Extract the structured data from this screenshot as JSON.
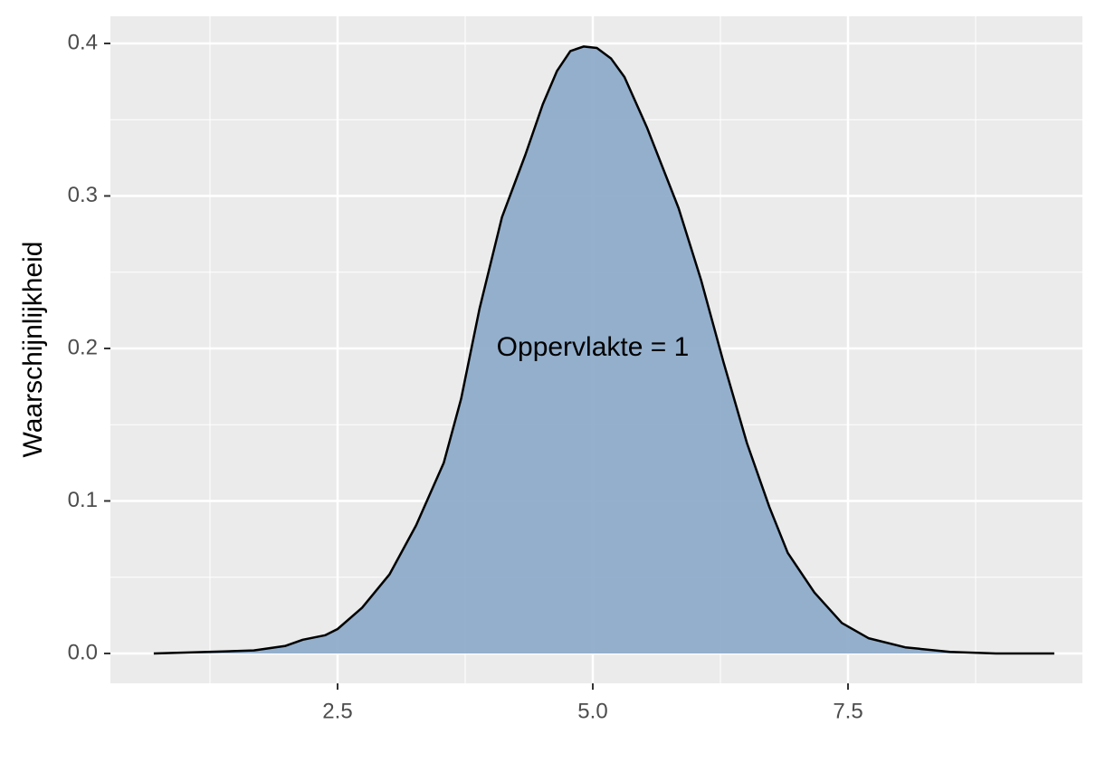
{
  "chart_data": {
    "type": "density",
    "y_label": "Waarschijnlijkheid",
    "annotation": {
      "text": "Oppervlakte = 1",
      "x": 5.0,
      "y": 0.2
    },
    "x": [
      0.7,
      1.23,
      1.68,
      1.99,
      2.16,
      2.38,
      2.5,
      2.74,
      3.01,
      3.27,
      3.54,
      3.71,
      3.89,
      4.11,
      4.34,
      4.51,
      4.65,
      4.78,
      4.91,
      5.04,
      5.18,
      5.31,
      5.53,
      5.84,
      6.06,
      6.28,
      6.51,
      6.73,
      6.91,
      7.17,
      7.44,
      7.7,
      8.06,
      8.5,
      8.95,
      9.52
    ],
    "values": [
      0,
      0.001,
      0.002,
      0.005,
      0.009,
      0.012,
      0.016,
      0.03,
      0.052,
      0.084,
      0.125,
      0.167,
      0.226,
      0.286,
      0.327,
      0.36,
      0.382,
      0.395,
      0.398,
      0.397,
      0.39,
      0.378,
      0.345,
      0.292,
      0.245,
      0.191,
      0.138,
      0.096,
      0.066,
      0.04,
      0.02,
      0.01,
      0.004,
      0.001,
      0,
      0
    ],
    "fill": "#8eacca",
    "color": "#000000",
    "xlim": [
      0.275,
      9.796
    ],
    "ylim": [
      -0.0196,
      0.4178
    ],
    "xticks": [
      {
        "value": 2.5,
        "label": "2.5"
      },
      {
        "value": 5.0,
        "label": "5.0"
      },
      {
        "value": 7.5,
        "label": "7.5"
      }
    ],
    "yticks": [
      {
        "value": 0,
        "label": "0.0"
      },
      {
        "value": 0.1,
        "label": "0.1"
      },
      {
        "value": 0.2,
        "label": "0.2"
      },
      {
        "value": 0.3,
        "label": "0.3"
      },
      {
        "value": 0.4,
        "label": "0.4"
      }
    ],
    "x_minor_ticks": [
      1.25,
      3.75,
      6.25,
      8.75
    ],
    "y_minor_ticks": [
      0.05,
      0.15,
      0.25,
      0.35
    ],
    "grid": true
  }
}
